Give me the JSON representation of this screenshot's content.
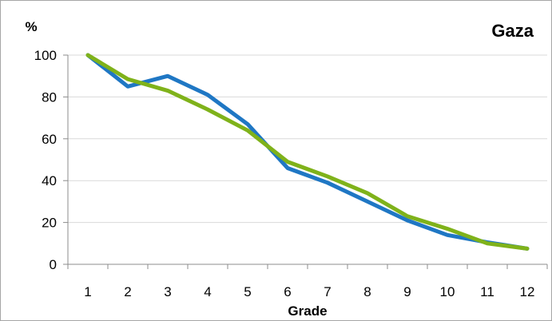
{
  "chart_data": {
    "type": "line",
    "title": "Gaza",
    "xlabel": "Grade",
    "ylabel": "%",
    "categories": [
      "1",
      "2",
      "3",
      "4",
      "5",
      "6",
      "7",
      "8",
      "9",
      "10",
      "11",
      "12"
    ],
    "ylim": [
      0,
      100
    ],
    "yticks": [
      0,
      20,
      40,
      60,
      80,
      100
    ],
    "grid": true,
    "series": [
      {
        "color": "#1f77c4",
        "values": [
          100,
          85,
          90,
          81,
          67,
          46,
          39,
          30,
          21,
          14,
          10.5,
          7.5
        ]
      },
      {
        "color": "#7fb21a",
        "values": [
          100,
          88.5,
          83,
          74,
          64,
          49,
          42,
          34,
          23,
          17,
          10,
          7.5
        ]
      }
    ]
  }
}
